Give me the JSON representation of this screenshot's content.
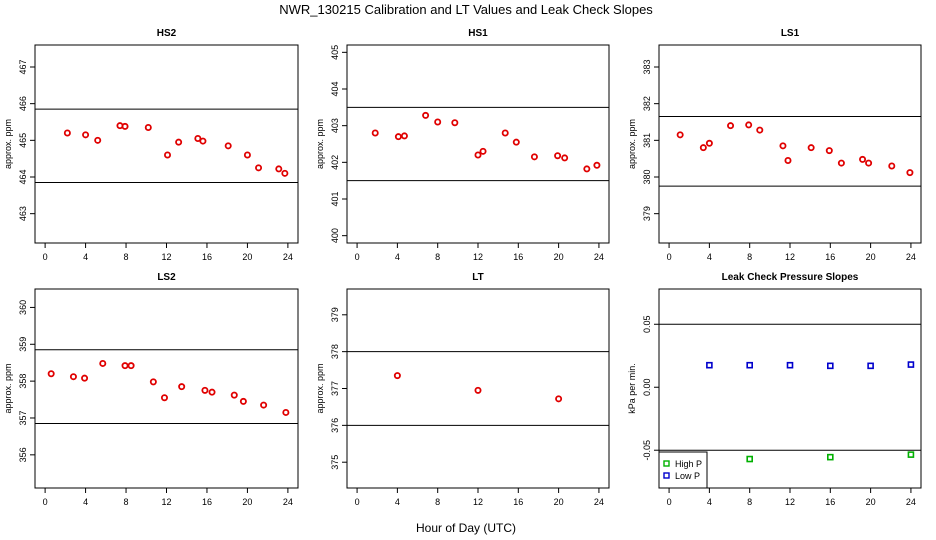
{
  "figure": {
    "title": "NWR_130215  Calibration and LT Values and Leak Check Slopes",
    "xlabel": "Hour of Day (UTC)"
  },
  "chart_data": [
    {
      "type": "scatter",
      "title": "HS2",
      "ylabel": "approx. ppm",
      "xlim": [
        -1,
        25
      ],
      "ylim": [
        462.2,
        467.6
      ],
      "xticks": [
        0,
        4,
        8,
        12,
        16,
        20,
        24
      ],
      "yticks": [
        463,
        464,
        465,
        466,
        467
      ],
      "hlines": [
        465.85,
        463.85
      ],
      "grid": false,
      "series": [
        {
          "color": "#e00000",
          "marker": "circle",
          "x": [
            2.2,
            4.0,
            5.2,
            7.4,
            7.9,
            10.2,
            12.1,
            13.2,
            15.1,
            15.6,
            18.1,
            20.0,
            21.1,
            23.1,
            23.7
          ],
          "y": [
            465.2,
            465.15,
            465.0,
            465.4,
            465.38,
            465.35,
            464.6,
            464.95,
            465.05,
            464.98,
            464.85,
            464.6,
            464.25,
            464.22,
            464.1
          ]
        }
      ]
    },
    {
      "type": "scatter",
      "title": "HS1",
      "ylabel": "approx. ppm",
      "xlim": [
        -1,
        25
      ],
      "ylim": [
        399.8,
        405.2
      ],
      "xticks": [
        0,
        4,
        8,
        12,
        16,
        20,
        24
      ],
      "yticks": [
        400,
        401,
        402,
        403,
        404,
        405
      ],
      "hlines": [
        403.5,
        401.5
      ],
      "grid": false,
      "series": [
        {
          "color": "#e00000",
          "marker": "circle",
          "x": [
            1.8,
            4.1,
            4.7,
            6.8,
            8.0,
            9.7,
            12.0,
            12.5,
            14.7,
            15.8,
            17.6,
            19.9,
            20.6,
            22.8,
            23.8
          ],
          "y": [
            402.8,
            402.7,
            402.72,
            403.28,
            403.1,
            403.08,
            402.2,
            402.3,
            402.8,
            402.55,
            402.15,
            402.18,
            402.12,
            401.82,
            401.92
          ]
        }
      ]
    },
    {
      "type": "scatter",
      "title": "LS1",
      "ylabel": "approx. ppm",
      "xlim": [
        -1,
        25
      ],
      "ylim": [
        378.2,
        383.6
      ],
      "xticks": [
        0,
        4,
        8,
        12,
        16,
        20,
        24
      ],
      "yticks": [
        379,
        380,
        381,
        382,
        383
      ],
      "hlines": [
        381.65,
        379.75
      ],
      "grid": false,
      "series": [
        {
          "color": "#e00000",
          "marker": "circle",
          "x": [
            1.1,
            3.4,
            4.0,
            6.1,
            7.9,
            9.0,
            11.3,
            11.8,
            14.1,
            15.9,
            17.1,
            19.2,
            19.8,
            22.1,
            23.9
          ],
          "y": [
            381.15,
            380.8,
            380.92,
            381.4,
            381.42,
            381.28,
            380.85,
            380.45,
            380.8,
            380.72,
            380.38,
            380.48,
            380.38,
            380.3,
            380.12
          ]
        }
      ]
    },
    {
      "type": "scatter",
      "title": "LS2",
      "ylabel": "approx. ppm",
      "xlim": [
        -1,
        25
      ],
      "ylim": [
        355.1,
        360.5
      ],
      "xticks": [
        0,
        4,
        8,
        12,
        16,
        20,
        24
      ],
      "yticks": [
        356,
        357,
        358,
        359,
        360
      ],
      "hlines": [
        358.85,
        356.85
      ],
      "grid": false,
      "series": [
        {
          "color": "#e00000",
          "marker": "circle",
          "x": [
            0.6,
            2.8,
            3.9,
            5.7,
            7.9,
            8.5,
            10.7,
            11.8,
            13.5,
            15.8,
            16.5,
            18.7,
            19.6,
            21.6,
            23.8
          ],
          "y": [
            358.2,
            358.12,
            358.08,
            358.48,
            358.42,
            358.42,
            357.98,
            357.55,
            357.85,
            357.75,
            357.7,
            357.62,
            357.45,
            357.35,
            357.15
          ]
        }
      ]
    },
    {
      "type": "scatter",
      "title": "LT",
      "ylabel": "approx. ppm",
      "xlim": [
        -1,
        25
      ],
      "ylim": [
        374.3,
        379.7
      ],
      "xticks": [
        0,
        4,
        8,
        12,
        16,
        20,
        24
      ],
      "yticks": [
        375,
        376,
        377,
        378,
        379
      ],
      "hlines": [
        378.0,
        376.0
      ],
      "grid": false,
      "series": [
        {
          "color": "#e00000",
          "marker": "circle",
          "x": [
            4.0,
            12.0,
            20.0
          ],
          "y": [
            377.35,
            376.95,
            376.72
          ]
        }
      ]
    },
    {
      "type": "scatter",
      "title": "Leak Check Pressure Slopes",
      "ylabel": "kPa per min.",
      "xlim": [
        -1,
        25
      ],
      "ylim": [
        -0.08,
        0.078
      ],
      "xticks": [
        0,
        4,
        8,
        12,
        16,
        20,
        24
      ],
      "yticks": [
        -0.05,
        0.0,
        0.05
      ],
      "ytick_labels": [
        "-0.05",
        "0.00",
        "0.05"
      ],
      "hlines": [
        0.05,
        -0.05
      ],
      "grid": false,
      "legend": "bottom-left",
      "series": [
        {
          "name": "High P",
          "color": "#00b000",
          "marker": "square",
          "x": [
            8,
            16,
            24
          ],
          "y": [
            -0.057,
            -0.0555,
            -0.0535
          ]
        },
        {
          "name": "Low P",
          "color": "#0000cc",
          "marker": "square",
          "x": [
            4,
            8,
            12,
            16,
            20,
            24
          ],
          "y": [
            0.0175,
            0.0175,
            0.0175,
            0.017,
            0.017,
            0.018
          ]
        }
      ]
    }
  ]
}
